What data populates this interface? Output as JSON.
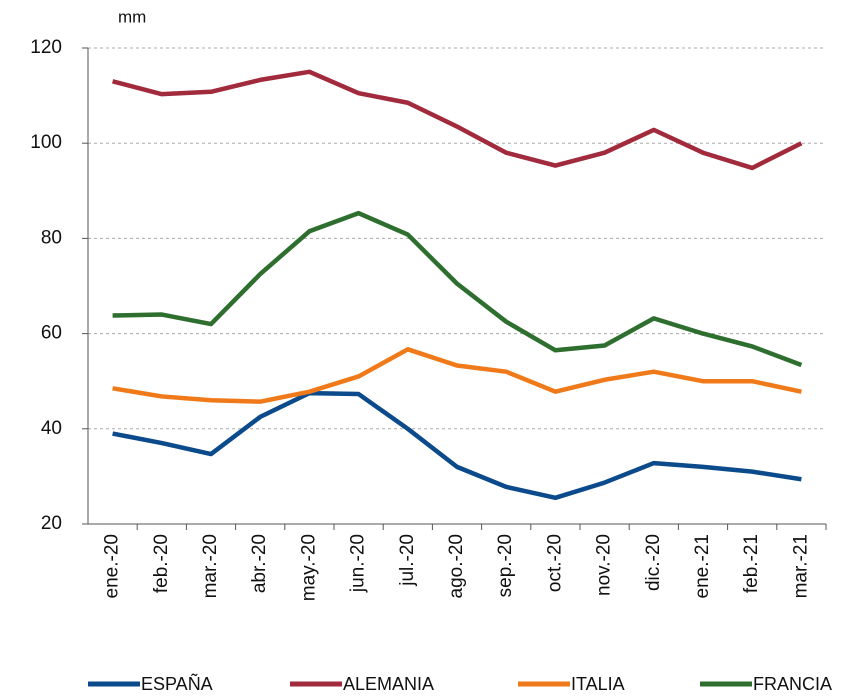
{
  "chart_data": {
    "type": "line",
    "y_label": "mm",
    "categories": [
      "ene.-20",
      "feb.-20",
      "mar.-20",
      "abr.-20",
      "may.-20",
      "jun.-20",
      "jul.-20",
      "ago.-20",
      "sep.-20",
      "oct.-20",
      "nov.-20",
      "dic.-20",
      "ene.-21",
      "feb.-21",
      "mar.-21"
    ],
    "series": [
      {
        "name": "ESPAÑA",
        "color": "#0b4a8b",
        "values": [
          39,
          37,
          34.7,
          42.5,
          47.5,
          47.3,
          40,
          32,
          27.8,
          25.5,
          28.7,
          32.8,
          32,
          31,
          29.4
        ]
      },
      {
        "name": "ALEMANIA",
        "color": "#a12a3c",
        "values": [
          113,
          110.3,
          110.8,
          113.3,
          115,
          110.5,
          108.5,
          103.5,
          98,
          95.3,
          98,
          102.8,
          98,
          94.8,
          100
        ]
      },
      {
        "name": "ITALIA",
        "color": "#f07a1a",
        "values": [
          48.5,
          46.8,
          46,
          45.7,
          47.8,
          51,
          56.7,
          53.3,
          52,
          47.8,
          50.3,
          52,
          50,
          50,
          47.8
        ]
      },
      {
        "name": "FRANCIA",
        "color": "#2e6e2e",
        "values": [
          63.8,
          64,
          62,
          72.5,
          81.5,
          85.3,
          80.8,
          70.5,
          62.5,
          56.5,
          57.5,
          63.2,
          60,
          57.3,
          53.4
        ]
      }
    ],
    "ylim": [
      20,
      120
    ],
    "yticks": [
      20,
      40,
      60,
      80,
      100,
      120
    ],
    "grid": true
  }
}
